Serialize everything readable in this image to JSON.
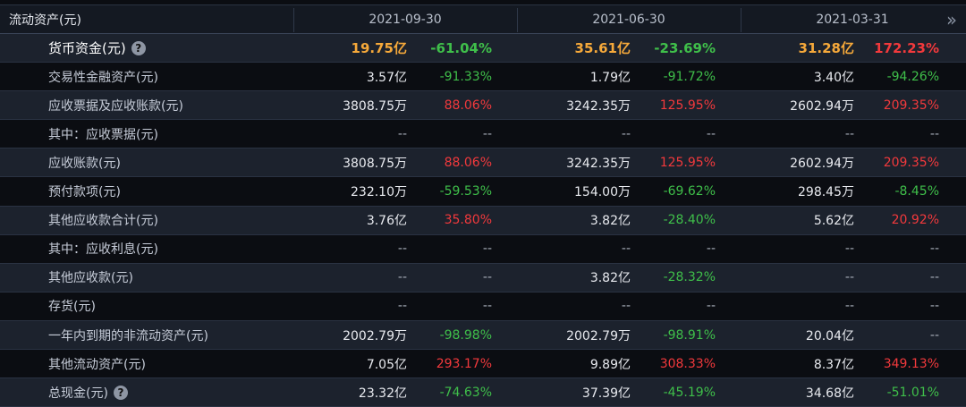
{
  "header": {
    "title": "流动资产(元)",
    "dates": [
      "2021-09-30",
      "2021-06-30",
      "2021-03-31"
    ],
    "more_icon": "double-chevron-right-icon"
  },
  "rows": [
    {
      "label": "货币资金(元)",
      "help": true,
      "highlight": true,
      "cells": [
        {
          "v": "19.75亿",
          "p": "-61.04%"
        },
        {
          "v": "35.61亿",
          "p": "-23.69%"
        },
        {
          "v": "31.28亿",
          "p": "172.23%"
        }
      ]
    },
    {
      "label": "交易性金融资产(元)",
      "cells": [
        {
          "v": "3.57亿",
          "p": "-91.33%"
        },
        {
          "v": "1.79亿",
          "p": "-91.72%"
        },
        {
          "v": "3.40亿",
          "p": "-94.26%"
        }
      ]
    },
    {
      "label": "应收票据及应收账款(元)",
      "cells": [
        {
          "v": "3808.75万",
          "p": "88.06%"
        },
        {
          "v": "3242.35万",
          "p": "125.95%"
        },
        {
          "v": "2602.94万",
          "p": "209.35%"
        }
      ]
    },
    {
      "label": "其中：应收票据(元)",
      "cells": [
        {
          "v": "--",
          "p": "--"
        },
        {
          "v": "--",
          "p": "--"
        },
        {
          "v": "--",
          "p": "--"
        }
      ]
    },
    {
      "label": "应收账款(元)",
      "cells": [
        {
          "v": "3808.75万",
          "p": "88.06%"
        },
        {
          "v": "3242.35万",
          "p": "125.95%"
        },
        {
          "v": "2602.94万",
          "p": "209.35%"
        }
      ]
    },
    {
      "label": "预付款项(元)",
      "cells": [
        {
          "v": "232.10万",
          "p": "-59.53%"
        },
        {
          "v": "154.00万",
          "p": "-69.62%"
        },
        {
          "v": "298.45万",
          "p": "-8.45%"
        }
      ]
    },
    {
      "label": "其他应收款合计(元)",
      "cells": [
        {
          "v": "3.76亿",
          "p": "35.80%"
        },
        {
          "v": "3.82亿",
          "p": "-28.40%"
        },
        {
          "v": "5.62亿",
          "p": "20.92%"
        }
      ]
    },
    {
      "label": "其中：应收利息(元)",
      "cells": [
        {
          "v": "--",
          "p": "--"
        },
        {
          "v": "--",
          "p": "--"
        },
        {
          "v": "--",
          "p": "--"
        }
      ]
    },
    {
      "label": "其他应收款(元)",
      "cells": [
        {
          "v": "--",
          "p": "--"
        },
        {
          "v": "3.82亿",
          "p": "-28.32%"
        },
        {
          "v": "--",
          "p": "--"
        }
      ]
    },
    {
      "label": "存货(元)",
      "cells": [
        {
          "v": "--",
          "p": "--"
        },
        {
          "v": "--",
          "p": "--"
        },
        {
          "v": "--",
          "p": "--"
        }
      ]
    },
    {
      "label": "一年内到期的非流动资产(元)",
      "cells": [
        {
          "v": "2002.79万",
          "p": "-98.98%"
        },
        {
          "v": "2002.79万",
          "p": "-98.91%"
        },
        {
          "v": "20.04亿",
          "p": "--"
        }
      ]
    },
    {
      "label": "其他流动资产(元)",
      "cells": [
        {
          "v": "7.05亿",
          "p": "293.17%"
        },
        {
          "v": "9.89亿",
          "p": "308.33%"
        },
        {
          "v": "8.37亿",
          "p": "349.13%"
        }
      ]
    },
    {
      "label": "总现金(元)",
      "help": true,
      "cells": [
        {
          "v": "23.32亿",
          "p": "-74.63%"
        },
        {
          "v": "37.39亿",
          "p": "-45.19%"
        },
        {
          "v": "34.68亿",
          "p": "-51.01%"
        }
      ]
    }
  ],
  "colors": {
    "up": "#f2393c",
    "down": "#3fbf4a",
    "highlight_value": "#f6a93a",
    "bg_dark": "#0b0d12",
    "bg_alt": "#1c222d"
  }
}
